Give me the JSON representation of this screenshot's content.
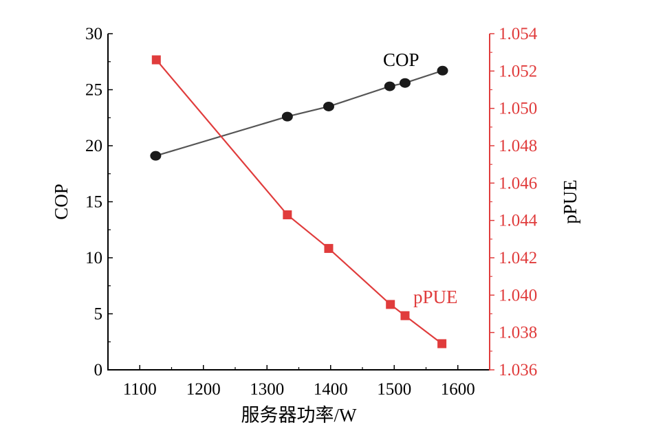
{
  "chart_data": {
    "type": "line",
    "xlabel": "服务器功率/W",
    "ylabel_left": "COP",
    "ylabel_right": "pPUE",
    "x_ticks": [
      "1100",
      "1200",
      "1300",
      "1400",
      "1500",
      "1600"
    ],
    "y_left_ticks": [
      "0",
      "5",
      "10",
      "15",
      "20",
      "25",
      "30"
    ],
    "y_right_ticks": [
      "1.036",
      "1.038",
      "1.040",
      "1.042",
      "1.044",
      "1.046",
      "1.048",
      "1.050",
      "1.052",
      "1.054"
    ],
    "xlim": [
      1050,
      1650
    ],
    "ylim_left": [
      0,
      30
    ],
    "ylim_right": [
      1.036,
      1.054
    ],
    "series": [
      {
        "name": "COP",
        "axis": "left",
        "color": "#1a1a1a",
        "line_color": "#555555",
        "marker": "circle",
        "x": [
          1125,
          1332,
          1397,
          1493,
          1517,
          1576
        ],
        "y": [
          19.1,
          22.6,
          23.5,
          25.3,
          25.6,
          26.7
        ]
      },
      {
        "name": "pPUE",
        "axis": "right",
        "color": "#e03c3c",
        "line_color": "#e03c3c",
        "marker": "square",
        "x": [
          1126,
          1332,
          1397,
          1494,
          1517,
          1575
        ],
        "y": [
          1.0526,
          1.0443,
          1.0425,
          1.0395,
          1.0389,
          1.0374
        ]
      }
    ],
    "grid": false
  }
}
